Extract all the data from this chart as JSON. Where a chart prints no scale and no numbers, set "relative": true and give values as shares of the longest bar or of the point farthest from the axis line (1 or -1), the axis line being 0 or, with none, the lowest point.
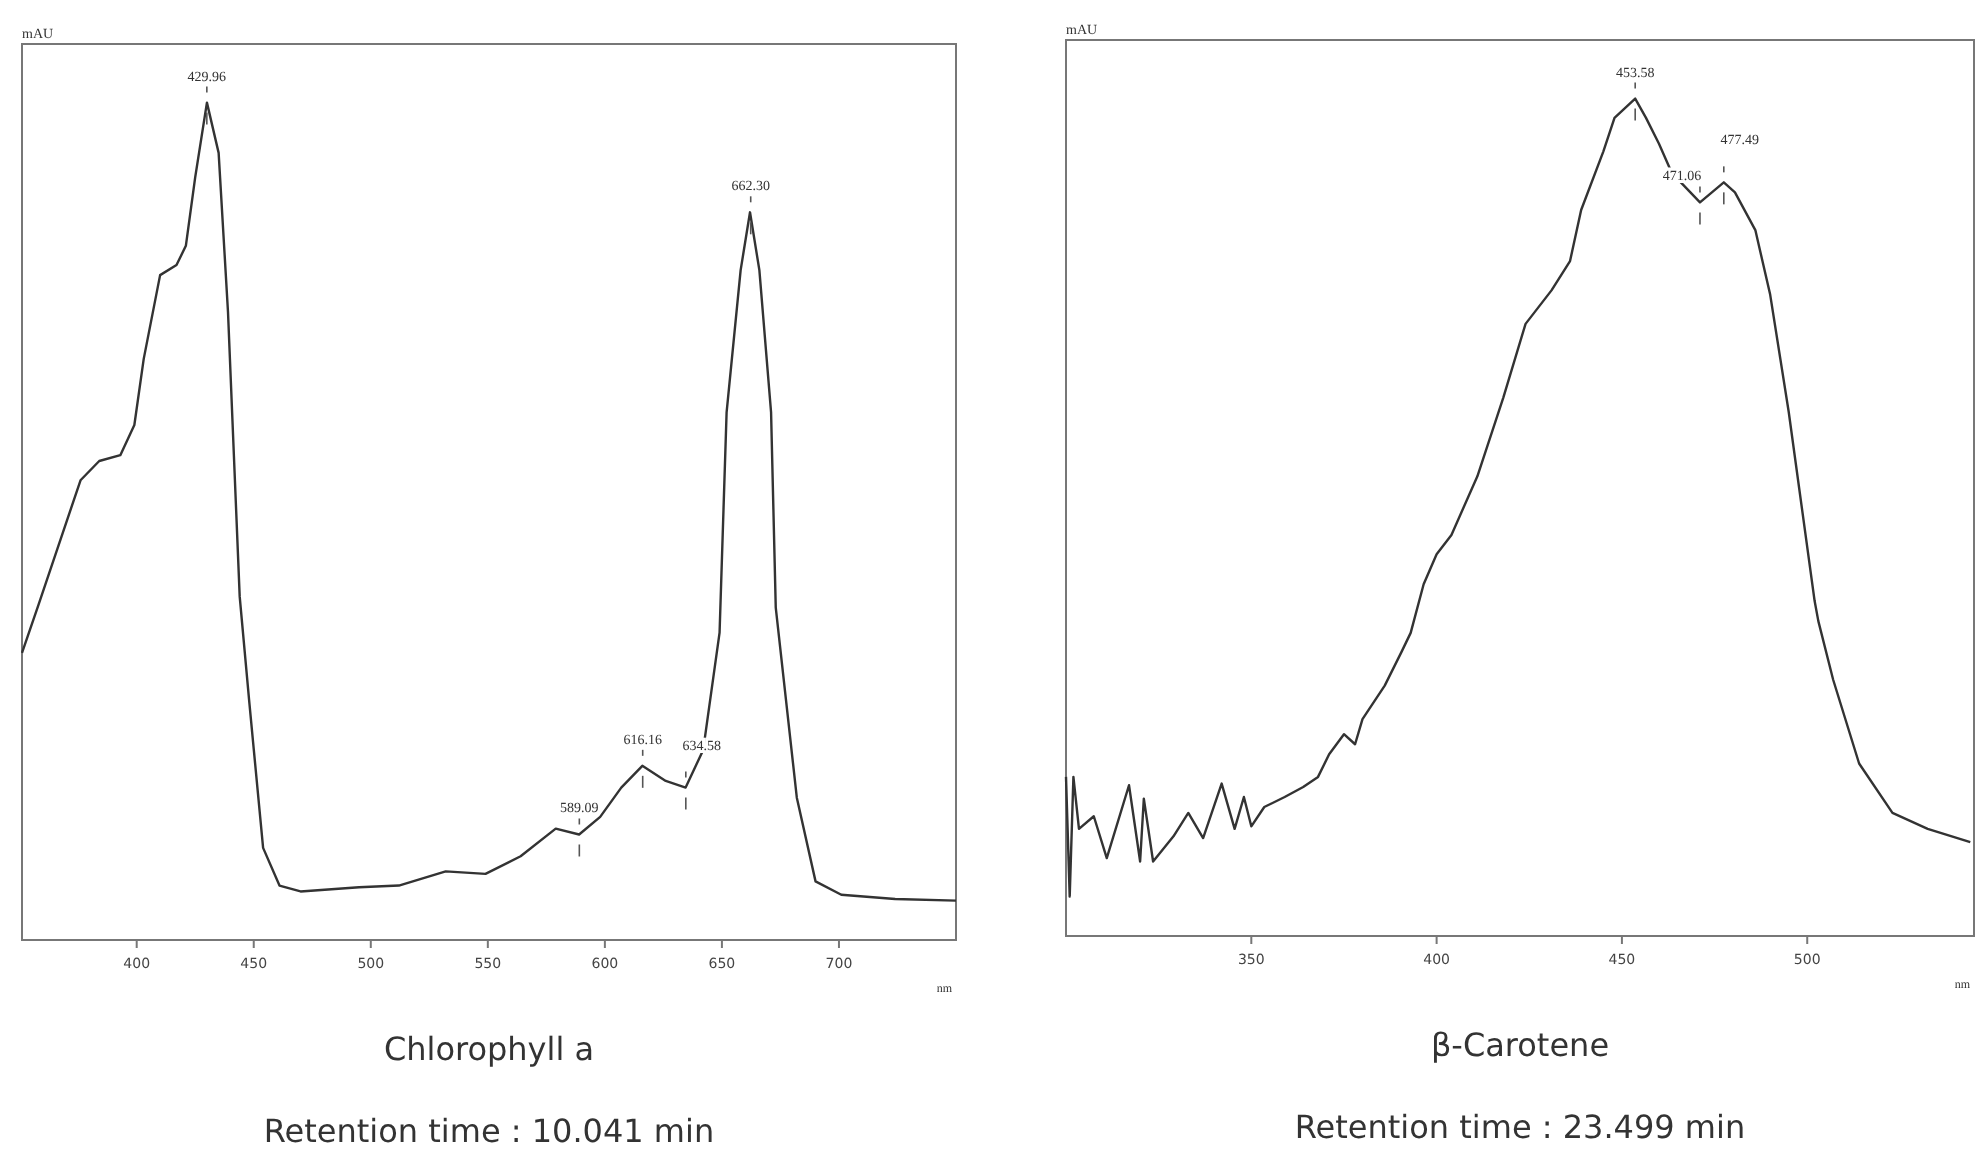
{
  "chart_data": [
    {
      "type": "line",
      "title": "Chlorophyll a",
      "subtitle": "Retention time : 10.041 min",
      "xlabel": "nm",
      "ylabel": "mAU",
      "relative": true,
      "color": "#333333",
      "xlim": [
        351,
        750
      ],
      "xticks": [
        400,
        450,
        500,
        550,
        600,
        650,
        700
      ],
      "x": [
        351,
        358,
        376,
        384,
        393,
        399,
        403,
        410,
        417,
        421,
        425,
        430,
        435,
        439,
        444,
        448,
        454,
        461,
        470,
        495,
        512,
        532,
        549,
        564,
        579,
        589,
        598,
        607,
        616,
        626,
        634.5,
        642,
        649,
        652,
        658,
        662,
        666,
        671,
        673,
        682,
        690,
        701,
        724,
        750
      ],
      "values": [
        0.343,
        0.4,
        0.549,
        0.572,
        0.579,
        0.615,
        0.694,
        0.794,
        0.806,
        0.829,
        0.911,
        1.0,
        0.94,
        0.75,
        0.41,
        0.287,
        0.11,
        0.065,
        0.058,
        0.063,
        0.065,
        0.082,
        0.079,
        0.1,
        0.133,
        0.126,
        0.147,
        0.182,
        0.208,
        0.19,
        0.182,
        0.227,
        0.367,
        0.63,
        0.8,
        0.869,
        0.8,
        0.63,
        0.397,
        0.17,
        0.07,
        0.054,
        0.049,
        0.047
      ],
      "annotations": [
        {
          "text": "429.96",
          "x": 429.96,
          "y": 1.0
        },
        {
          "text": "662.30",
          "x": 662.3,
          "y": 0.869
        },
        {
          "text": "616.16",
          "x": 616.16,
          "y": 0.208
        },
        {
          "text": "634.58",
          "x": 634.58,
          "y": 0.182
        },
        {
          "text": "589.09",
          "x": 589.09,
          "y": 0.126
        }
      ]
    },
    {
      "type": "line",
      "title": "β-Carotene",
      "subtitle": "Retention time : 23.499 min",
      "xlabel": "nm",
      "ylabel": "mAU",
      "relative": true,
      "color": "#333333",
      "xlim": [
        300,
        545
      ],
      "xticks": [
        350,
        400,
        450,
        500
      ],
      "x": [
        300,
        301,
        302,
        303.5,
        307.5,
        311,
        317,
        320,
        321,
        323.5,
        329,
        333,
        337,
        342,
        345.5,
        348,
        350,
        353.5,
        359,
        364,
        368,
        371,
        375,
        378,
        380,
        386,
        390.5,
        393,
        396.5,
        400,
        404,
        411,
        418,
        424,
        431,
        436,
        439,
        445,
        448,
        453.58,
        456.5,
        460,
        463.5,
        471.06,
        477.49,
        480.5,
        486,
        490,
        495,
        502,
        503,
        507,
        514,
        523,
        532.5,
        544
      ],
      "values": [
        0.19,
        0.047,
        0.19,
        0.128,
        0.143,
        0.093,
        0.18,
        0.089,
        0.164,
        0.089,
        0.119,
        0.147,
        0.117,
        0.182,
        0.128,
        0.166,
        0.131,
        0.154,
        0.166,
        0.178,
        0.19,
        0.217,
        0.241,
        0.229,
        0.259,
        0.299,
        0.339,
        0.362,
        0.42,
        0.456,
        0.479,
        0.549,
        0.643,
        0.731,
        0.771,
        0.806,
        0.867,
        0.937,
        0.977,
        1.0,
        0.977,
        0.946,
        0.911,
        0.876,
        0.9,
        0.888,
        0.843,
        0.766,
        0.626,
        0.4,
        0.376,
        0.306,
        0.206,
        0.147,
        0.128,
        0.112
      ],
      "annotations": [
        {
          "text": "453.58",
          "x": 453.58,
          "y": 1.0
        },
        {
          "text": "471.06",
          "x": 471.06,
          "y": 0.876
        },
        {
          "text": "477.49",
          "x": 477.49,
          "y": 0.9
        }
      ]
    }
  ]
}
